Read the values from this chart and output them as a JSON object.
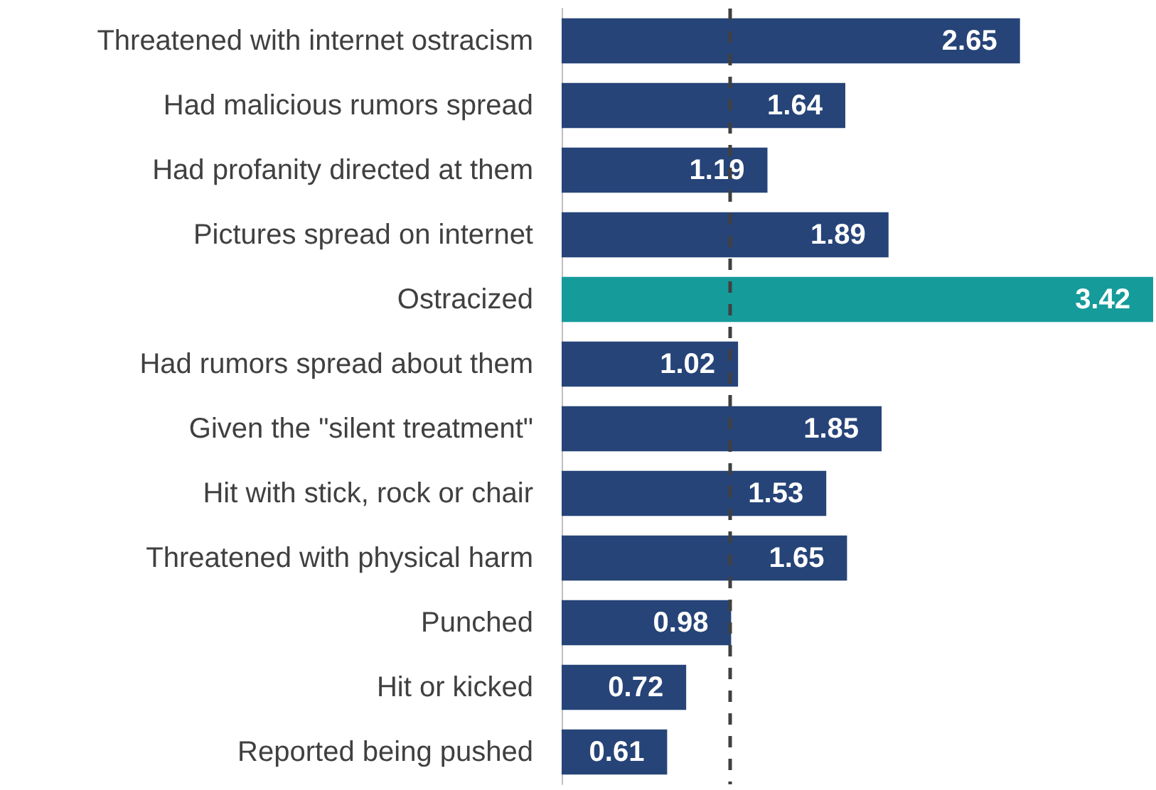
{
  "chart_data": {
    "type": "bar",
    "orientation": "horizontal",
    "data_labels": true,
    "categories": [
      "Threatened with internet ostracism",
      "Had malicious rumors spread",
      "Had profanity directed at them",
      "Pictures spread on internet",
      "Ostracized",
      "Had rumors spread about them",
      "Given the \"silent treatment\"",
      "Hit with stick, rock or chair",
      "Threatened with physical harm",
      "Punched",
      "Hit or kicked",
      "Reported being pushed"
    ],
    "values": [
      2.65,
      1.64,
      1.19,
      1.89,
      3.42,
      1.02,
      1.85,
      1.53,
      1.65,
      0.98,
      0.72,
      0.61
    ],
    "colors": [
      "#264478",
      "#264478",
      "#264478",
      "#264478",
      "#169b9b",
      "#264478",
      "#264478",
      "#264478",
      "#264478",
      "#264478",
      "#264478",
      "#264478"
    ],
    "tick_labels": "y",
    "grid": false,
    "ref_lines": [
      {
        "axis": "x",
        "value": 0.97,
        "label": null,
        "color": "#404040",
        "line_style": "dashed"
      }
    ]
  }
}
